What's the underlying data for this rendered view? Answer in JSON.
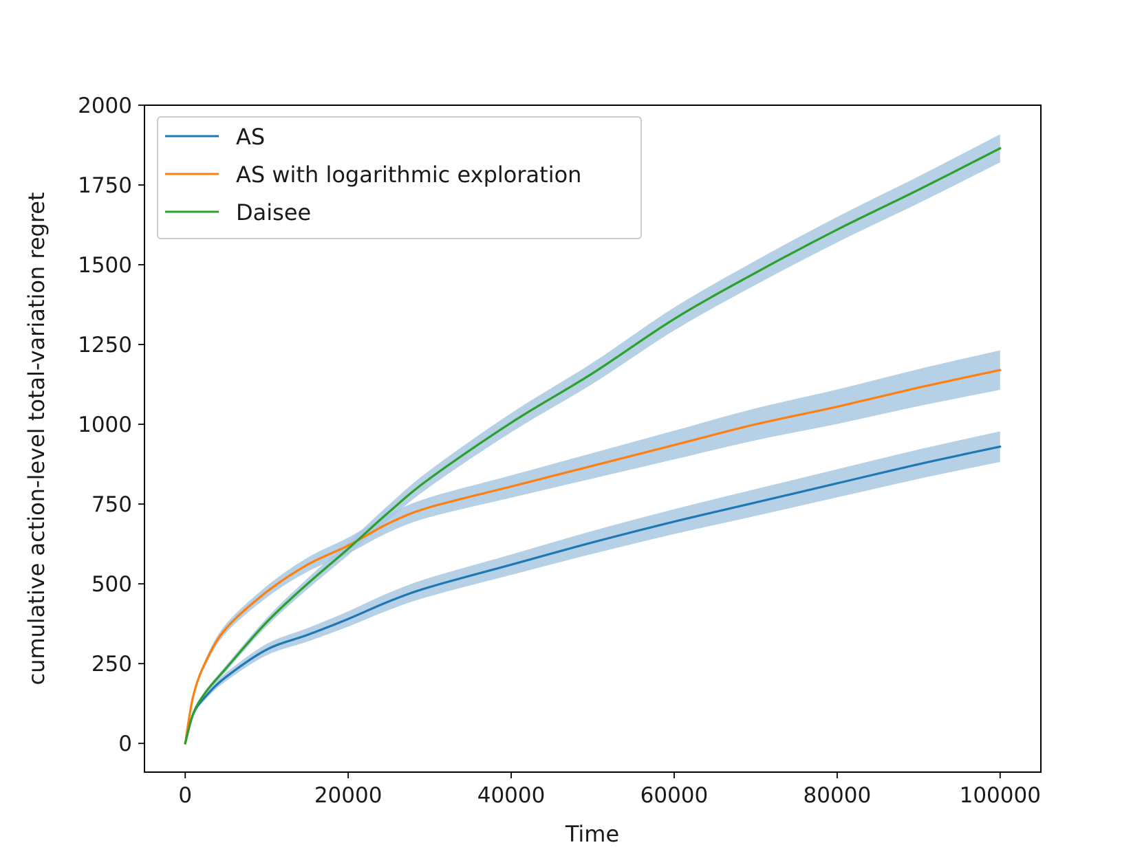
{
  "chart_data": {
    "type": "line",
    "title": "",
    "xlabel": "Time",
    "ylabel": "cumulative action-level total-variation regret",
    "xlim": [
      -5000,
      105000
    ],
    "ylim": [
      -90,
      2000
    ],
    "xticks": [
      0,
      20000,
      40000,
      60000,
      80000,
      100000
    ],
    "yticks": [
      0,
      250,
      500,
      750,
      1000,
      1250,
      1500,
      1750,
      2000
    ],
    "xtick_labels": [
      "0",
      "20000",
      "40000",
      "60000",
      "80000",
      "100000"
    ],
    "ytick_labels": [
      "0",
      "250",
      "500",
      "750",
      "1000",
      "1250",
      "1500",
      "1750",
      "2000"
    ],
    "grid": false,
    "legend_position": "upper left",
    "band_color": "#a9c8e2",
    "x": [
      0,
      1000,
      2500,
      5000,
      10000,
      15000,
      20000,
      25000,
      30000,
      40000,
      50000,
      60000,
      70000,
      80000,
      90000,
      100000
    ],
    "series": [
      {
        "name": "AS",
        "color": "#1f77b4",
        "values": [
          0,
          93,
          147,
          208,
          294,
          340,
          390,
          445,
          490,
          560,
          630,
          695,
          755,
          815,
          875,
          930
        ],
        "band_halfwidth": [
          0,
          6,
          9,
          13,
          18,
          21,
          24,
          27,
          29,
          32,
          36,
          39,
          42,
          44,
          46,
          48
        ]
      },
      {
        "name": "AS with logarithmic exploration",
        "color": "#ff7f0e",
        "values": [
          0,
          150,
          255,
          360,
          475,
          560,
          620,
          690,
          740,
          805,
          870,
          935,
          1000,
          1055,
          1115,
          1170
        ],
        "band_halfwidth": [
          0,
          6,
          10,
          14,
          18,
          22,
          25,
          28,
          31,
          35,
          40,
          45,
          50,
          54,
          58,
          62
        ]
      },
      {
        "name": "Daisee",
        "color": "#2ca02c",
        "values": [
          0,
          95,
          160,
          235,
          380,
          500,
          610,
          725,
          830,
          1005,
          1160,
          1330,
          1475,
          1610,
          1735,
          1865
        ],
        "band_halfwidth": [
          0,
          4,
          6,
          9,
          13,
          17,
          20,
          23,
          26,
          30,
          33,
          36,
          38,
          40,
          42,
          44
        ]
      }
    ]
  }
}
